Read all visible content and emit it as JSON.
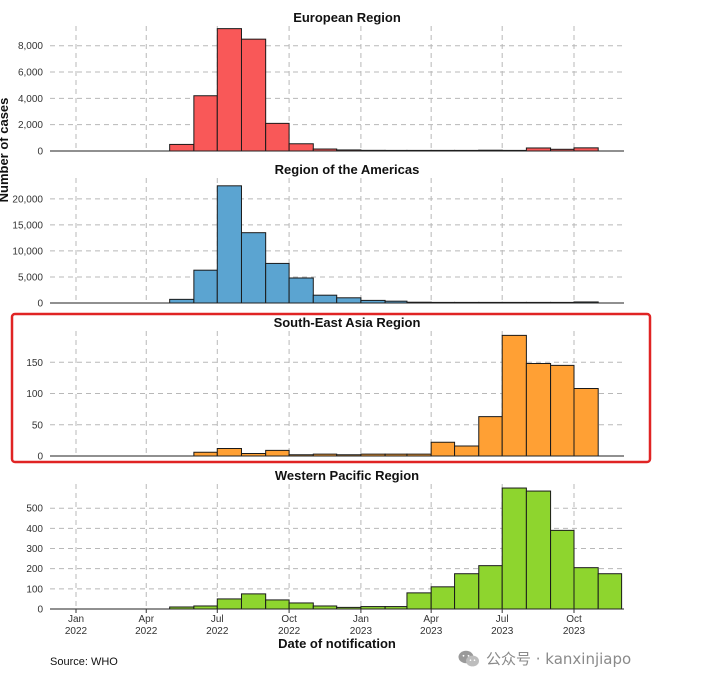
{
  "chart_data": {
    "type": "bar",
    "ylabel": "Number of cases",
    "xlabel": "Date of notification",
    "source": "Source: WHO",
    "x_ticks": [
      {
        "date": "2022-01-01",
        "label": [
          "Jan",
          "2022"
        ]
      },
      {
        "date": "2022-04-01",
        "label": [
          "Apr",
          "2022"
        ]
      },
      {
        "date": "2022-07-01",
        "label": [
          "Jul",
          "2022"
        ]
      },
      {
        "date": "2022-10-01",
        "label": [
          "Oct",
          "2022"
        ]
      },
      {
        "date": "2023-01-01",
        "label": [
          "Jan",
          "2023"
        ]
      },
      {
        "date": "2023-04-01",
        "label": [
          "Apr",
          "2023"
        ]
      },
      {
        "date": "2023-07-01",
        "label": [
          "Jul",
          "2023"
        ]
      },
      {
        "date": "2023-10-01",
        "label": [
          "Oct",
          "2023"
        ]
      }
    ],
    "bins": [
      "2022-05",
      "2022-06",
      "2022-07",
      "2022-08",
      "2022-09",
      "2022-10",
      "2022-11",
      "2022-12",
      "2023-01",
      "2023-02",
      "2023-03",
      "2023-04",
      "2023-05",
      "2023-06",
      "2023-07",
      "2023-08",
      "2023-09",
      "2023-10",
      "2023-11"
    ],
    "panels": [
      {
        "title": "European Region",
        "color": "#f95858",
        "ylim": [
          0,
          9500
        ],
        "yticks": [
          0,
          2000,
          4000,
          6000,
          8000
        ],
        "yticklabels": [
          "0",
          "2,000",
          "4,000",
          "6,000",
          "8,000"
        ],
        "values": [
          500,
          4200,
          9300,
          8500,
          2100,
          550,
          150,
          80,
          50,
          20,
          20,
          20,
          20,
          60,
          20,
          230,
          130,
          240,
          0
        ],
        "highlighted": false
      },
      {
        "title": "Region of the Americas",
        "color": "#5ba4d1",
        "ylim": [
          0,
          24000
        ],
        "yticks": [
          0,
          5000,
          10000,
          15000,
          20000
        ],
        "yticklabels": [
          "0",
          "5,000",
          "10,000",
          "15,000",
          "20,000"
        ],
        "values": [
          700,
          6300,
          22500,
          13500,
          7600,
          4800,
          1500,
          1000,
          500,
          350,
          150,
          100,
          100,
          100,
          100,
          100,
          100,
          200,
          0
        ],
        "highlighted": false
      },
      {
        "title": "South-East Asia Region",
        "color": "#ffa034",
        "ylim": [
          0,
          200
        ],
        "yticks": [
          0,
          50,
          100,
          150
        ],
        "yticklabels": [
          "0",
          "50",
          "100",
          "150"
        ],
        "values": [
          0,
          6,
          12,
          4,
          9,
          2,
          3,
          2,
          3,
          3,
          3,
          22,
          16,
          63,
          193,
          148,
          145,
          108,
          0
        ],
        "highlighted": true
      },
      {
        "title": "Western Pacific Region",
        "color": "#8ed52e",
        "ylim": [
          0,
          620
        ],
        "yticks": [
          0,
          100,
          200,
          300,
          400,
          500
        ],
        "yticklabels": [
          "0",
          "100",
          "200",
          "300",
          "400",
          "500"
        ],
        "values": [
          10,
          15,
          50,
          75,
          45,
          30,
          15,
          8,
          12,
          12,
          80,
          110,
          175,
          215,
          600,
          585,
          390,
          205,
          175
        ],
        "highlighted": false
      }
    ]
  },
  "watermark": {
    "text": "公众号 · kanxinjiapo",
    "icon": "wechat-icon"
  }
}
